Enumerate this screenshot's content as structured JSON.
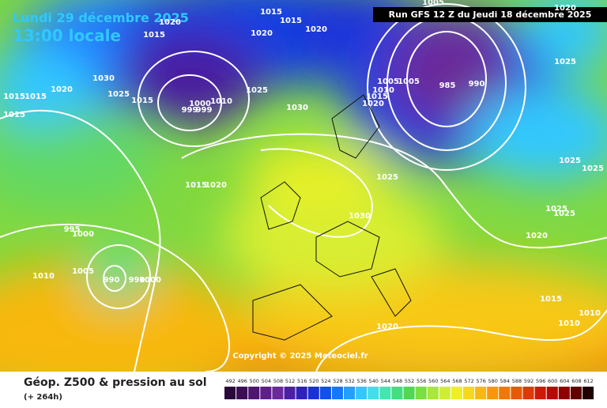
{
  "header": {
    "date": "Lundi 29 décembre 2025",
    "time": "13:00 locale",
    "run": "Run GFS 12 Z du Jeudi 18 décembre 2025"
  },
  "copyright": "Copyright © 2025 Meteociel.fr",
  "footer": {
    "title": "Géop. Z500 & pression au sol",
    "lead": "(+ 264h)"
  },
  "isobar_labels": [
    "1015",
    "1020",
    "1015",
    "1015",
    "1020",
    "1020",
    "1005",
    "1020",
    "1025",
    "1030",
    "1025",
    "1020",
    "1015",
    "1015",
    "1015",
    "1015",
    "1000",
    "1010",
    "999",
    "999",
    "1025",
    "1030",
    "1005",
    "1005",
    "1010",
    "1015",
    "1020",
    "985",
    "990",
    "1025",
    "1025",
    "1025",
    "1015",
    "1020",
    "1030",
    "1025",
    "1025",
    "1020",
    "995",
    "1000",
    "1005",
    "1010",
    "990",
    "990",
    "1000",
    "1015",
    "1010",
    "1010",
    "1020"
  ],
  "colorbar": {
    "labels": [
      492,
      496,
      500,
      504,
      508,
      512,
      516,
      520,
      524,
      528,
      532,
      536,
      540,
      544,
      548,
      552,
      556,
      560,
      564,
      568,
      572,
      576,
      580,
      584,
      588,
      592,
      596,
      600,
      604,
      608,
      612
    ],
    "colors": [
      "#2a0a3a",
      "#3c0f55",
      "#4e1670",
      "#5e1f88",
      "#6a2a9a",
      "#4b1fa8",
      "#3020c0",
      "#1a30d8",
      "#1050ee",
      "#1478ff",
      "#20a0ff",
      "#30c8ff",
      "#40e0e8",
      "#40e8b0",
      "#40e080",
      "#50d850",
      "#78e040",
      "#a8e838",
      "#d0ee30",
      "#f0f020",
      "#f8d818",
      "#f8b810",
      "#f89808",
      "#f07808",
      "#e85808",
      "#e03808",
      "#d01808",
      "#b80808",
      "#900000",
      "#600000",
      "#200000"
    ]
  }
}
